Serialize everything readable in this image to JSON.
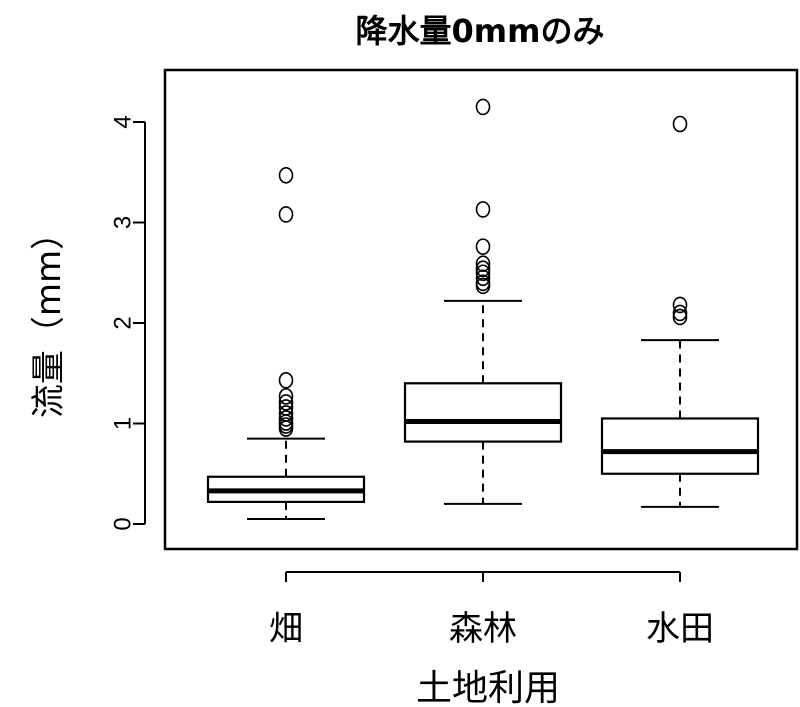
{
  "chart_data": {
    "type": "boxplot",
    "title": "降水量0mmのみ",
    "xlabel": "土地利用",
    "ylabel": "流量（mm）",
    "ylim": [
      -0.25,
      4.5
    ],
    "yticks": [
      0,
      1,
      2,
      3,
      4
    ],
    "categories": [
      "畑",
      "森林",
      "水田"
    ],
    "boxes": [
      {
        "category": "畑",
        "whisker_low": 0.05,
        "q1": 0.22,
        "median": 0.33,
        "q3": 0.47,
        "whisker_high": 0.85,
        "outliers": [
          3.47,
          3.08,
          1.43,
          1.27,
          1.21,
          1.16,
          1.1,
          1.05,
          1.01,
          0.98,
          0.95
        ]
      },
      {
        "category": "森林",
        "whisker_low": 0.2,
        "q1": 0.82,
        "median": 1.02,
        "q3": 1.4,
        "whisker_high": 2.22,
        "outliers": [
          4.15,
          3.13,
          2.76,
          2.59,
          2.54,
          2.5,
          2.45,
          2.4,
          2.37
        ]
      },
      {
        "category": "水田",
        "whisker_low": 0.17,
        "q1": 0.5,
        "median": 0.72,
        "q3": 1.05,
        "whisker_high": 1.83,
        "outliers": [
          3.98,
          2.18,
          2.1,
          2.06
        ]
      }
    ],
    "grid": false,
    "legend": "none"
  }
}
